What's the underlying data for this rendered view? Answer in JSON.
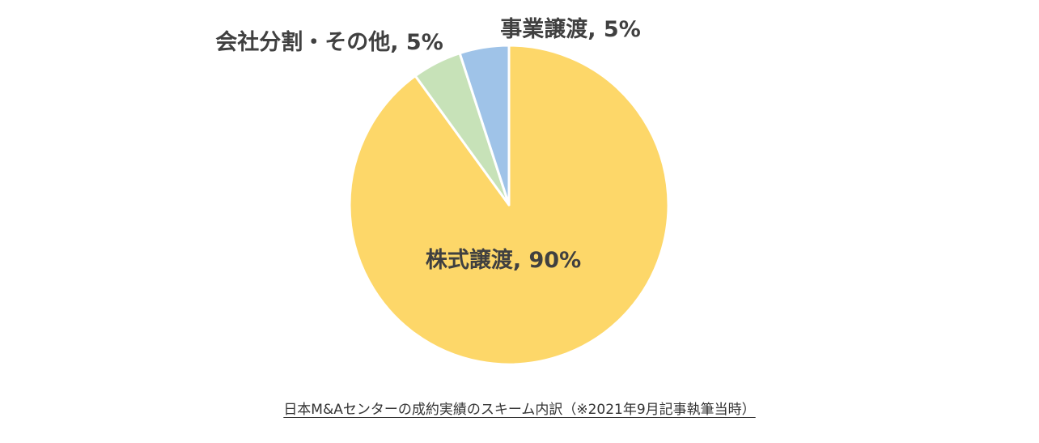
{
  "chart_data": {
    "type": "pie",
    "slices": [
      {
        "name": "株式譲渡",
        "value": 90,
        "label": "株式譲渡, 90%",
        "color": "#FDD769"
      },
      {
        "name": "会社分割・その他",
        "value": 5,
        "label": "会社分割・その他, 5%",
        "color": "#C7E2B8"
      },
      {
        "name": "事業譲渡",
        "value": 5,
        "label": "事業譲渡, 5%",
        "color": "#9FC3E8"
      }
    ],
    "start": "12 o'clock",
    "direction": "clockwise"
  },
  "caption": "日本M&Aセンターの成約実績のスキーム内訳（※2021年9月記事執筆当時）"
}
